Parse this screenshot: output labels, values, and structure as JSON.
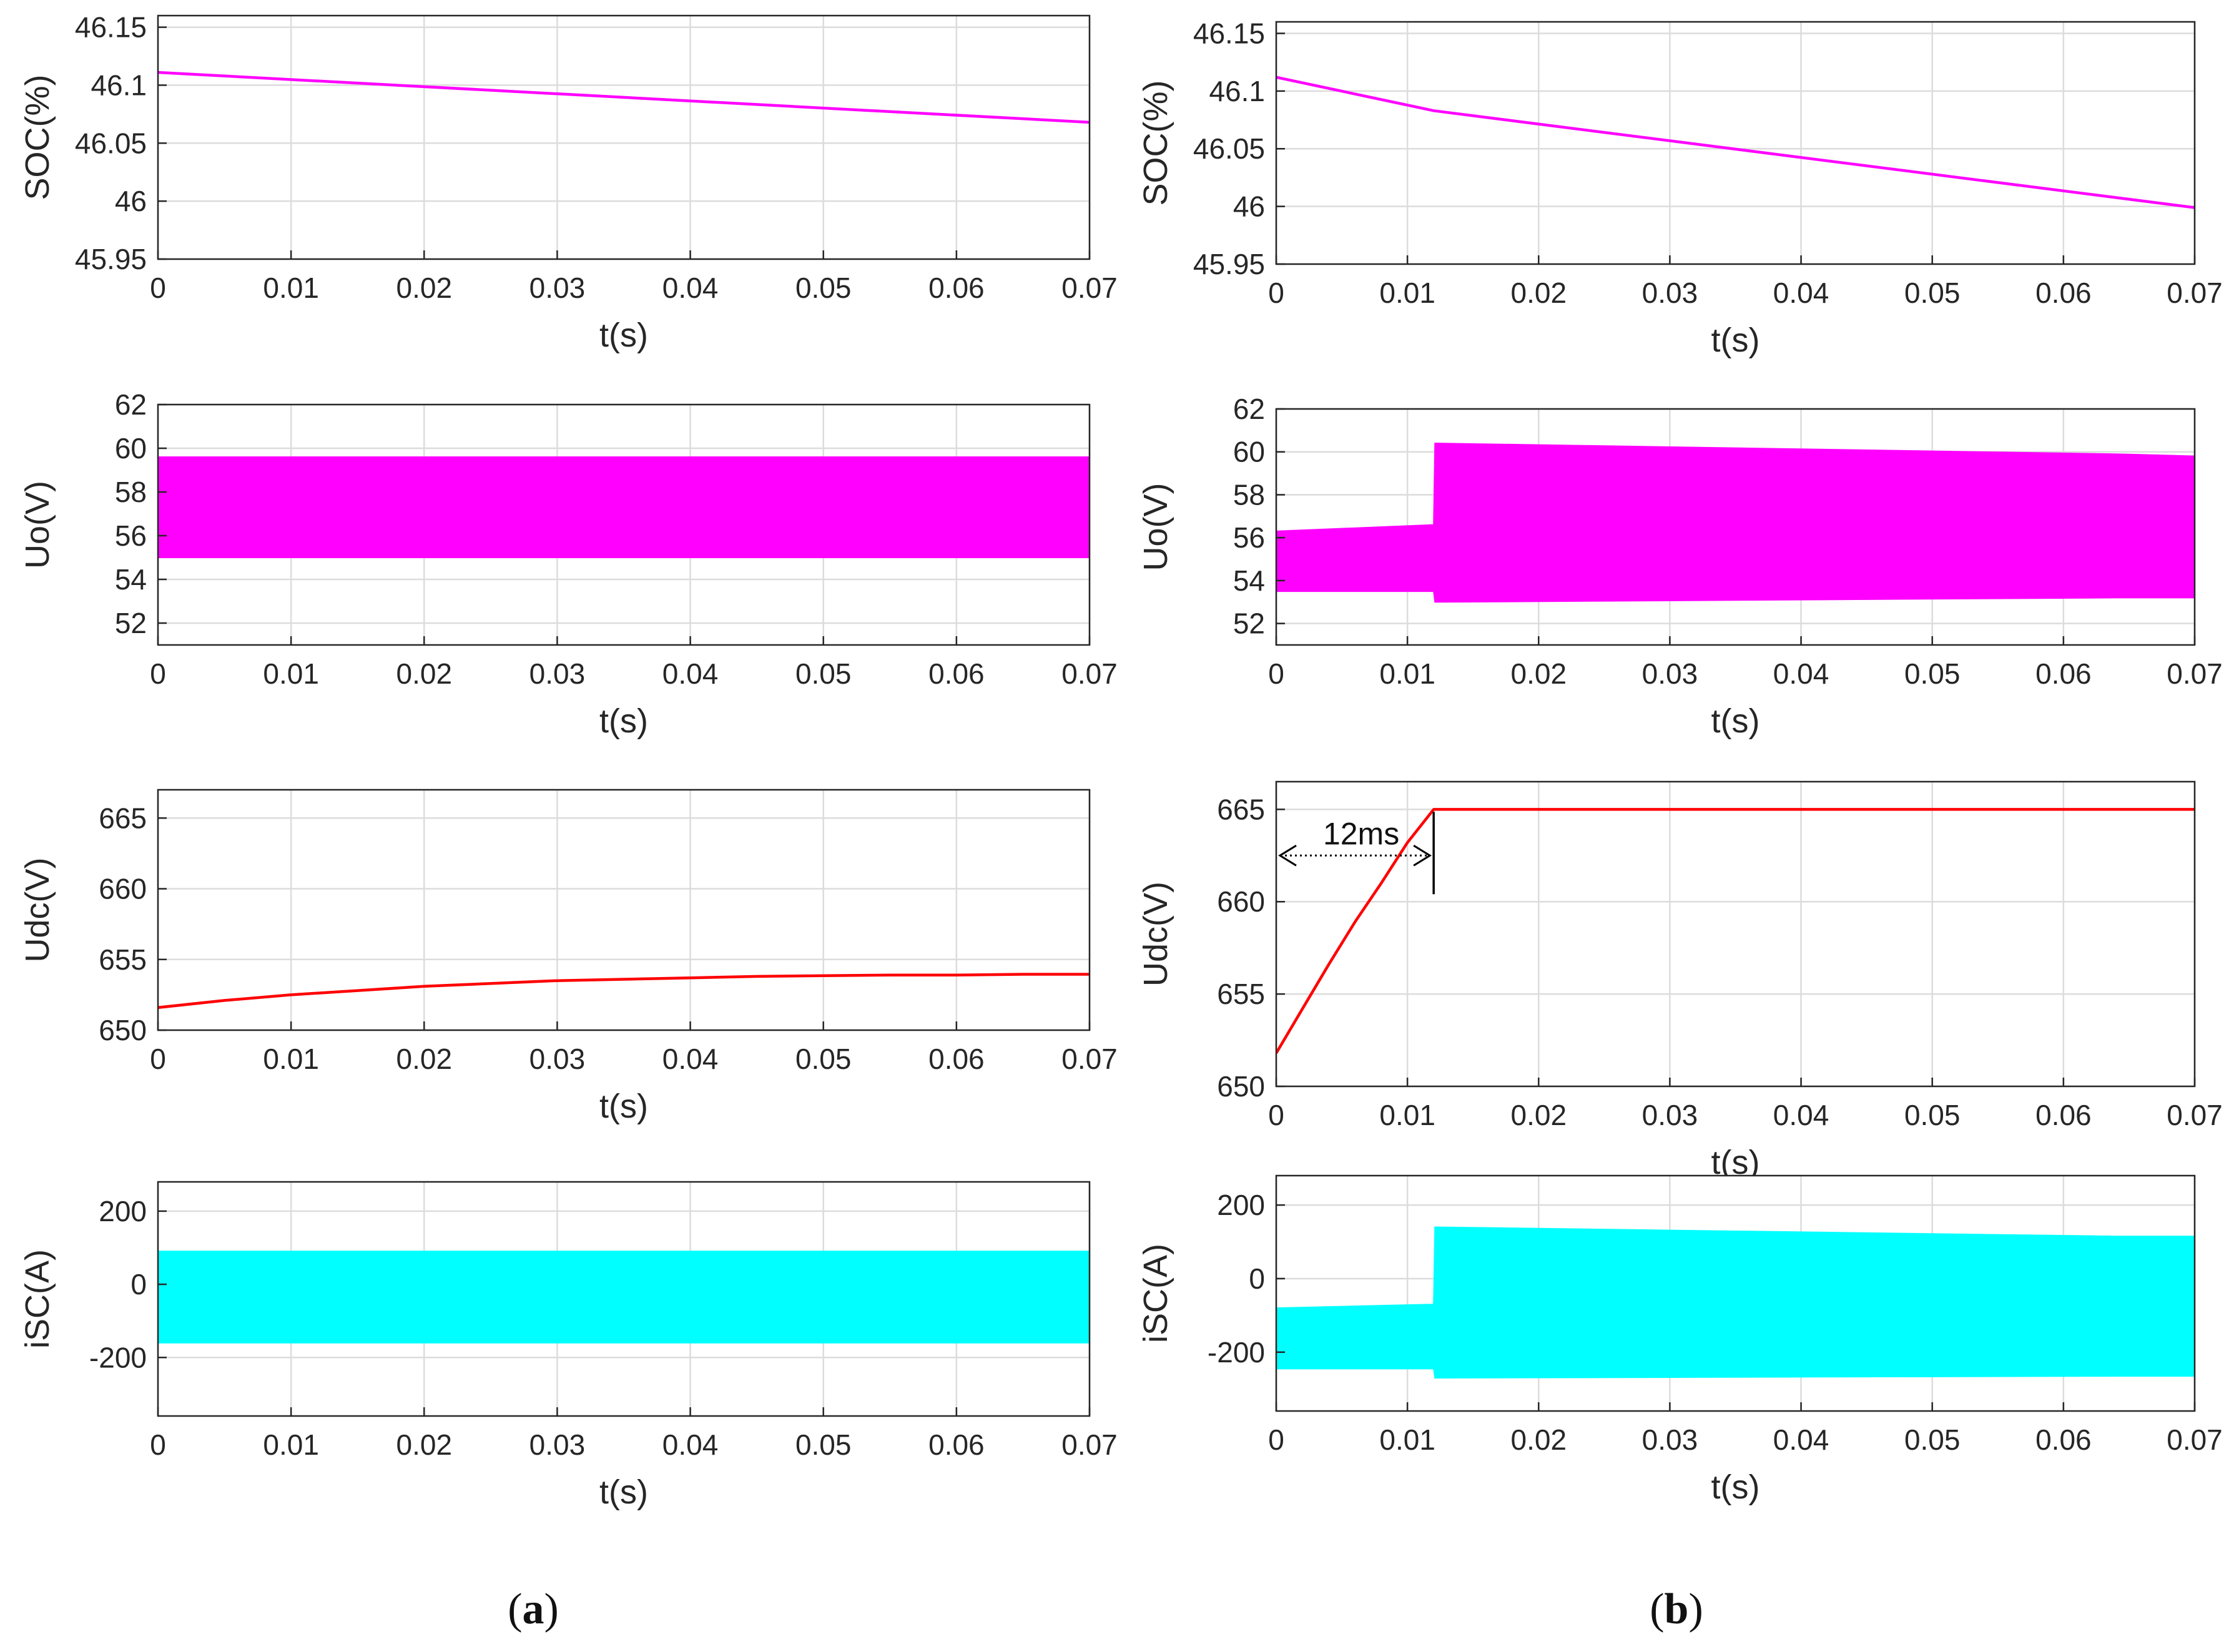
{
  "chart_data": [
    {
      "id": "a1",
      "type": "line",
      "ylabel": "SOC(%)",
      "xlabel": "t(s)",
      "xlim": [
        0,
        0.07
      ],
      "xticks": [
        0,
        0.01,
        0.02,
        0.03,
        0.04,
        0.05,
        0.06,
        0.07
      ],
      "xtick_labels": [
        "0",
        "0.01",
        "0.02",
        "0.03",
        "0.04",
        "0.05",
        "0.06",
        "0.07"
      ],
      "ylim": [
        45.95,
        46.16
      ],
      "yticks": [
        45.95,
        46,
        46.05,
        46.1,
        46.15
      ],
      "ytick_labels": [
        "45.95",
        "46",
        "46.05",
        "46.1",
        "46.15"
      ],
      "grid": true,
      "series": [
        {
          "name": "SOC",
          "color": "#ff00ff",
          "mode": "line",
          "x": [
            0,
            0.07
          ],
          "y": [
            46.111,
            46.068
          ]
        }
      ]
    },
    {
      "id": "a2",
      "type": "line",
      "ylabel": "Uo(V)",
      "xlabel": "t(s)",
      "xlim": [
        0,
        0.07
      ],
      "xticks": [
        0,
        0.01,
        0.02,
        0.03,
        0.04,
        0.05,
        0.06,
        0.07
      ],
      "xtick_labels": [
        "0",
        "0.01",
        "0.02",
        "0.03",
        "0.04",
        "0.05",
        "0.06",
        "0.07"
      ],
      "ylim": [
        51,
        62
      ],
      "yticks": [
        52,
        54,
        56,
        58,
        60,
        62
      ],
      "ytick_labels": [
        "52",
        "54",
        "56",
        "58",
        "60",
        "62"
      ],
      "grid": true,
      "series": [
        {
          "name": "Uo",
          "color": "#ff00ff",
          "mode": "band",
          "x": [
            0,
            0.07
          ],
          "lower": [
            55.0,
            55.0
          ],
          "upper": [
            59.6,
            59.6
          ]
        }
      ]
    },
    {
      "id": "a3",
      "type": "line",
      "ylabel": "Udc(V)",
      "xlabel": "t(s)",
      "xlim": [
        0,
        0.07
      ],
      "xticks": [
        0,
        0.01,
        0.02,
        0.03,
        0.04,
        0.05,
        0.06,
        0.07
      ],
      "xtick_labels": [
        "0",
        "0.01",
        "0.02",
        "0.03",
        "0.04",
        "0.05",
        "0.06",
        "0.07"
      ],
      "ylim": [
        650,
        667
      ],
      "yticks": [
        650,
        655,
        660,
        665
      ],
      "ytick_labels": [
        "650",
        "655",
        "660",
        "665"
      ],
      "grid": true,
      "series": [
        {
          "name": "Udc",
          "color": "#ff0000",
          "mode": "line",
          "x": [
            0,
            0.005,
            0.01,
            0.015,
            0.02,
            0.025,
            0.03,
            0.035,
            0.04,
            0.045,
            0.05,
            0.055,
            0.06,
            0.065,
            0.07
          ],
          "y": [
            651.6,
            652.1,
            652.5,
            652.8,
            653.1,
            653.3,
            653.5,
            653.6,
            653.7,
            653.8,
            653.85,
            653.9,
            653.9,
            653.95,
            653.95
          ]
        }
      ]
    },
    {
      "id": "a4",
      "type": "line",
      "ylabel": "iSC(A)",
      "xlabel": "t(s)",
      "xlim": [
        0,
        0.07
      ],
      "xticks": [
        0,
        0.01,
        0.02,
        0.03,
        0.04,
        0.05,
        0.06,
        0.07
      ],
      "xtick_labels": [
        "0",
        "0.01",
        "0.02",
        "0.03",
        "0.04",
        "0.05",
        "0.06",
        "0.07"
      ],
      "ylim": [
        -360,
        280
      ],
      "yticks": [
        -200,
        0,
        200
      ],
      "ytick_labels": [
        "-200",
        "0",
        "200"
      ],
      "grid": true,
      "series": [
        {
          "name": "iSC",
          "color": "#00ffff",
          "mode": "band",
          "x": [
            0,
            0.07
          ],
          "lower": [
            -160,
            -160
          ],
          "upper": [
            90,
            90
          ]
        }
      ]
    },
    {
      "id": "b1",
      "type": "line",
      "ylabel": "SOC(%)",
      "xlabel": "t(s)",
      "xlim": [
        0,
        0.07
      ],
      "xticks": [
        0,
        0.01,
        0.02,
        0.03,
        0.04,
        0.05,
        0.06,
        0.07
      ],
      "xtick_labels": [
        "0",
        "0.01",
        "0.02",
        "0.03",
        "0.04",
        "0.05",
        "0.06",
        "0.07"
      ],
      "ylim": [
        45.95,
        46.16
      ],
      "yticks": [
        45.95,
        46,
        46.05,
        46.1,
        46.15
      ],
      "ytick_labels": [
        "45.95",
        "46",
        "46.05",
        "46.1",
        "46.15"
      ],
      "grid": true,
      "series": [
        {
          "name": "SOC",
          "color": "#ff00ff",
          "mode": "line",
          "x": [
            0,
            0.012,
            0.07
          ],
          "y": [
            46.112,
            46.083,
            45.999
          ]
        }
      ]
    },
    {
      "id": "b2",
      "type": "line",
      "ylabel": "Uo(V)",
      "xlabel": "t(s)",
      "xlim": [
        0,
        0.07
      ],
      "xticks": [
        0,
        0.01,
        0.02,
        0.03,
        0.04,
        0.05,
        0.06,
        0.07
      ],
      "xtick_labels": [
        "0",
        "0.01",
        "0.02",
        "0.03",
        "0.04",
        "0.05",
        "0.06",
        "0.07"
      ],
      "ylim": [
        51,
        62
      ],
      "yticks": [
        52,
        54,
        56,
        58,
        60,
        62
      ],
      "ytick_labels": [
        "52",
        "54",
        "56",
        "58",
        "60",
        "62"
      ],
      "grid": true,
      "series": [
        {
          "name": "Uo",
          "color": "#ff00ff",
          "mode": "band",
          "x": [
            0,
            0.012,
            0.0121,
            0.064,
            0.07
          ],
          "lower": [
            53.5,
            53.5,
            53.0,
            53.2,
            53.2
          ],
          "upper": [
            56.3,
            56.6,
            60.4,
            59.9,
            59.8
          ]
        }
      ]
    },
    {
      "id": "b3",
      "type": "line",
      "ylabel": "Udc(V)",
      "xlabel": "t(s)",
      "xlim": [
        0,
        0.07
      ],
      "xticks": [
        0,
        0.01,
        0.02,
        0.03,
        0.04,
        0.05,
        0.06,
        0.07
      ],
      "xtick_labels": [
        "0",
        "0.01",
        "0.02",
        "0.03",
        "0.04",
        "0.05",
        "0.06",
        "0.07"
      ],
      "ylim": [
        650,
        666.5
      ],
      "yticks": [
        650,
        655,
        660,
        665
      ],
      "ytick_labels": [
        "650",
        "655",
        "660",
        "665"
      ],
      "grid": true,
      "series": [
        {
          "name": "Udc",
          "color": "#ff0000",
          "mode": "line",
          "x": [
            0,
            0.002,
            0.004,
            0.006,
            0.008,
            0.01,
            0.012,
            0.07
          ],
          "y": [
            651.8,
            654.2,
            656.6,
            658.9,
            661.0,
            663.2,
            665.0,
            665.0
          ]
        }
      ],
      "annotation": {
        "text": "12ms",
        "x_start": 0,
        "x_end": 0.012,
        "y": 662.5
      }
    },
    {
      "id": "b4",
      "type": "line",
      "ylabel": "iSC(A)",
      "xlabel": "t(s)",
      "xlim": [
        0,
        0.07
      ],
      "xticks": [
        0,
        0.01,
        0.02,
        0.03,
        0.04,
        0.05,
        0.06,
        0.07
      ],
      "xtick_labels": [
        "0",
        "0.01",
        "0.02",
        "0.03",
        "0.04",
        "0.05",
        "0.06",
        "0.07"
      ],
      "ylim": [
        -360,
        280
      ],
      "yticks": [
        -200,
        0,
        200
      ],
      "ytick_labels": [
        "-200",
        "0",
        "200"
      ],
      "grid": true,
      "series": [
        {
          "name": "iSC",
          "color": "#00ffff",
          "mode": "band",
          "x": [
            0,
            0.012,
            0.0121,
            0.064,
            0.07
          ],
          "lower": [
            -245,
            -245,
            -270,
            -265,
            -265
          ],
          "upper": [
            -80,
            -70,
            140,
            115,
            115
          ]
        }
      ]
    }
  ],
  "captions": {
    "a": "a",
    "b": "b"
  },
  "colors": {
    "soc": "#ff00ff",
    "uo": "#ff00ff",
    "udc": "#ff0000",
    "isc": "#00ffff"
  }
}
